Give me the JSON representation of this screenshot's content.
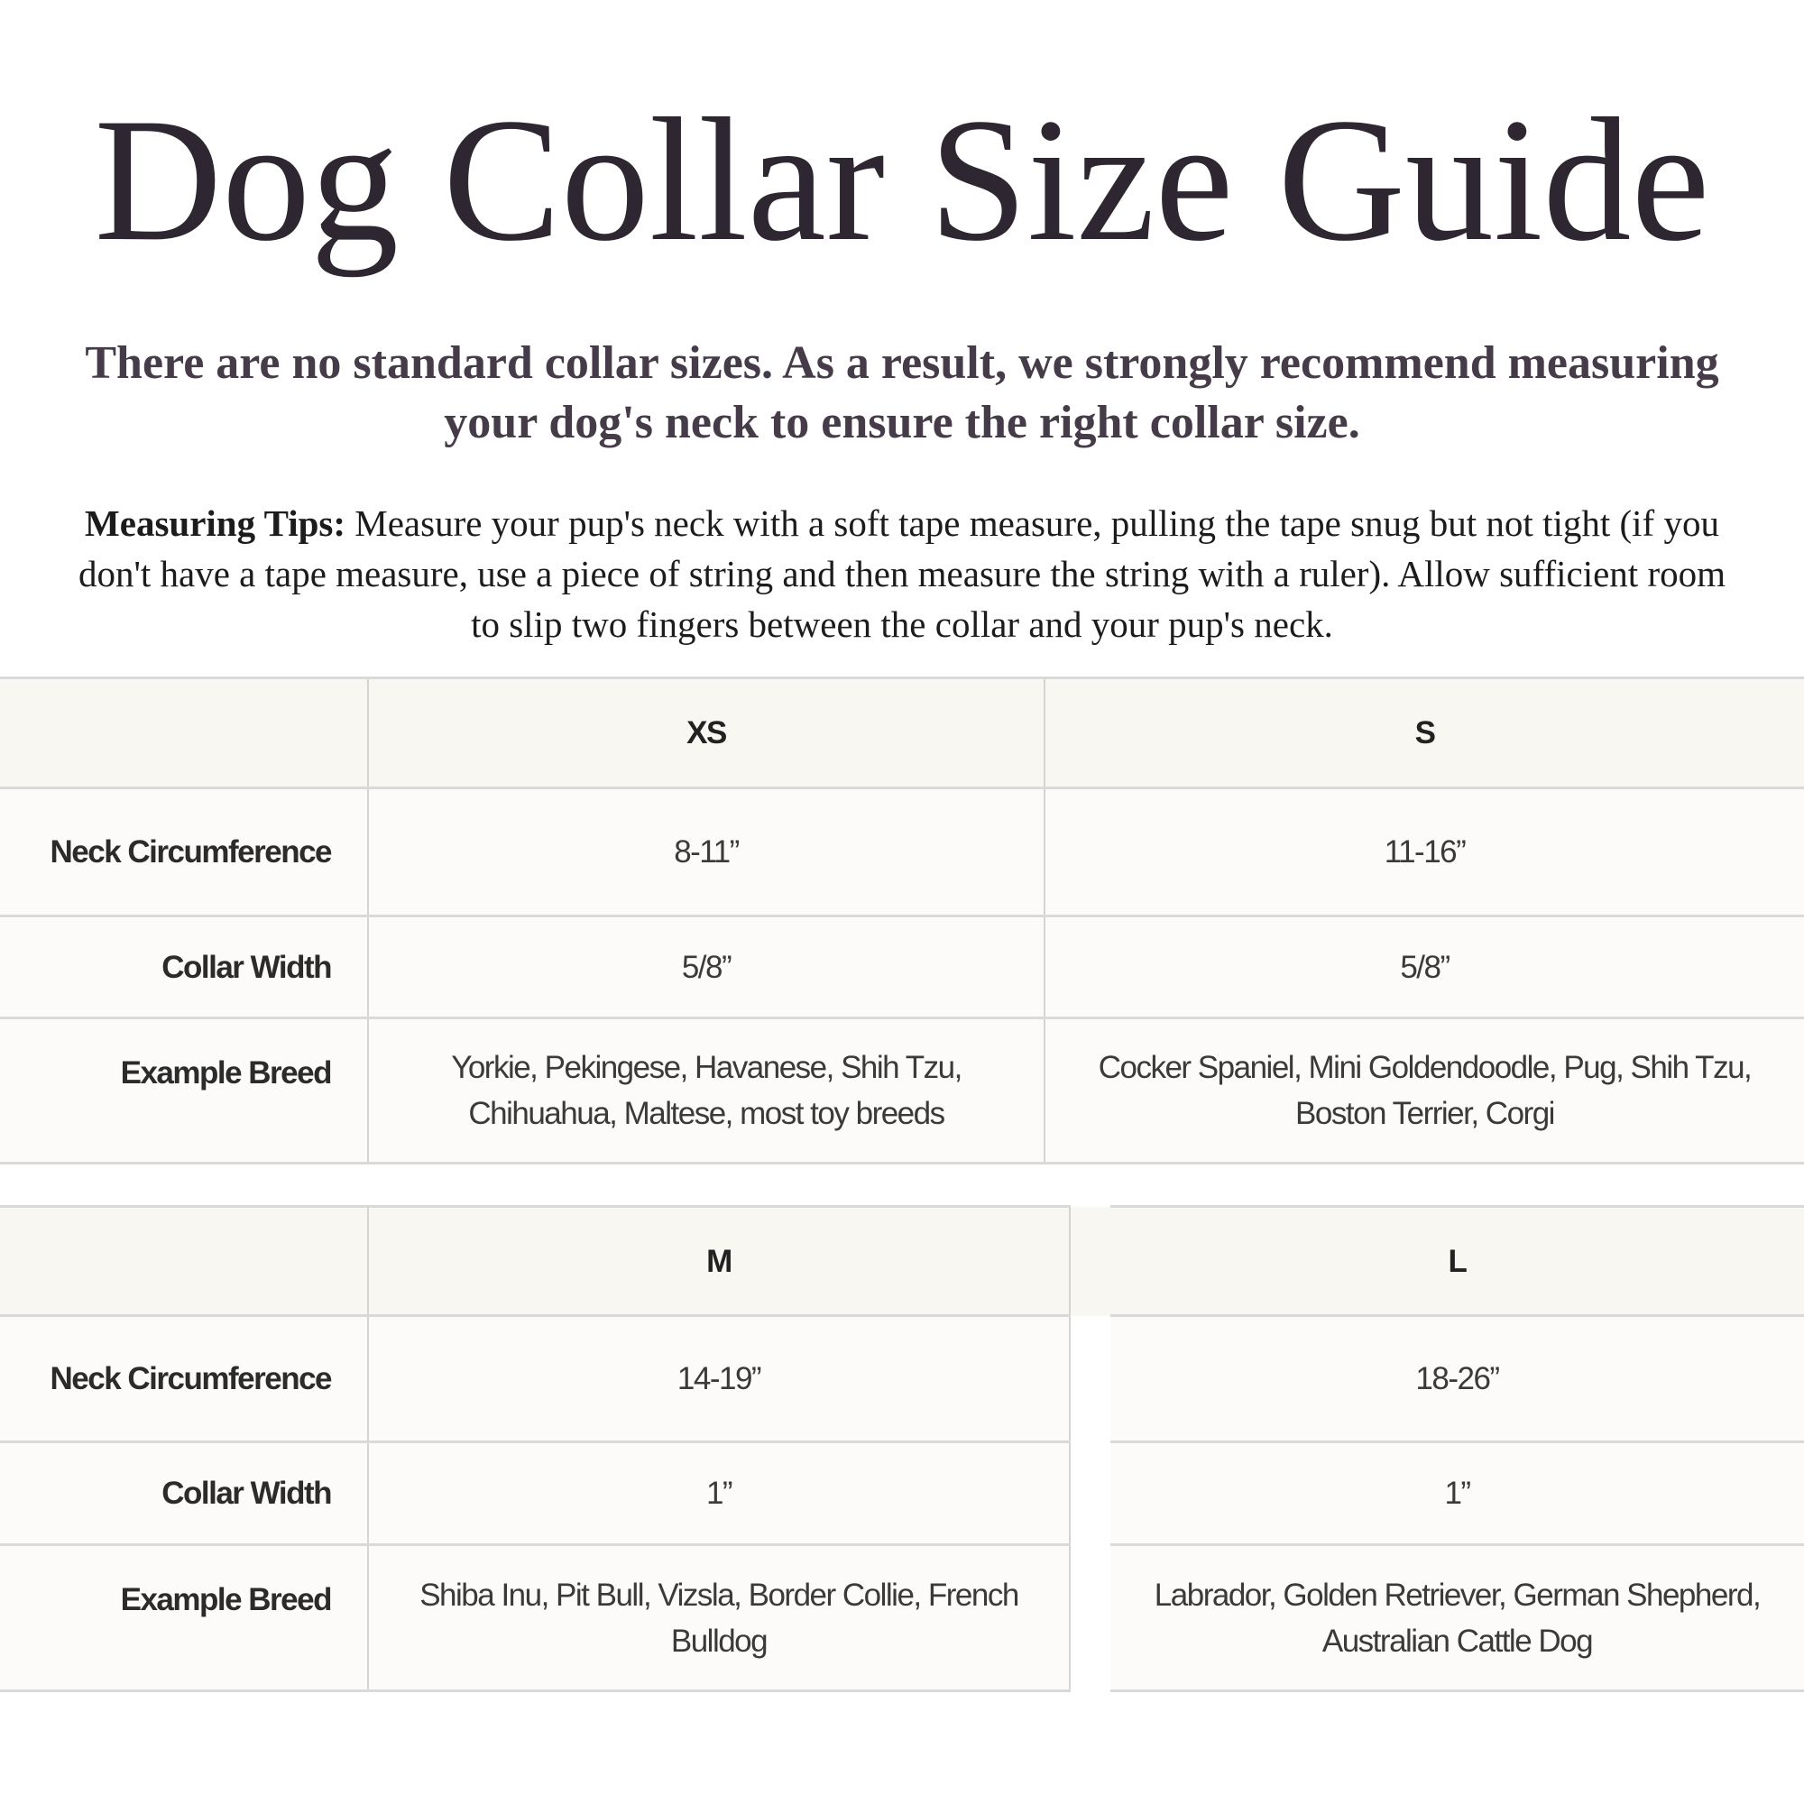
{
  "title": "Dog Collar Size Guide",
  "subtitle": "There are no standard collar sizes. As a result, we strongly recommend measuring your dog's neck to ensure the right collar size.",
  "tips": {
    "label": "Measuring Tips:",
    "text": " Measure your pup's neck with a soft tape measure, pulling the tape snug but not tight (if you don't have a tape measure, use a piece of string and then measure the string with a ruler). Allow sufficient room to slip two fingers between the collar and your pup's neck."
  },
  "row_labels": [
    "Neck Circumference",
    "Collar Width",
    "Example Breed"
  ],
  "tables": [
    {
      "sizes": [
        {
          "size": "XS",
          "neck": "8-11”",
          "width": "5/8”",
          "breeds": "Yorkie, Pekingese, Havanese, Shih Tzu, Chihuahua, Maltese, most toy breeds"
        },
        {
          "size": "S",
          "neck": "11-16”",
          "width": "5/8”",
          "breeds": "Cocker Spaniel, Mini Goldendoodle, Pug, Shih Tzu, Boston Terrier, Corgi"
        }
      ]
    },
    {
      "sizes": [
        {
          "size": "M",
          "neck": "14-19”",
          "width": "1”",
          "breeds": "Shiba Inu, Pit Bull, Vizsla, Border Collie, French Bulldog"
        },
        {
          "size": "L",
          "neck": "18-26”",
          "width": "1”",
          "breeds": "Labrador, Golden Retriever, German Shepherd, Australian Cattle Dog"
        }
      ]
    }
  ]
}
